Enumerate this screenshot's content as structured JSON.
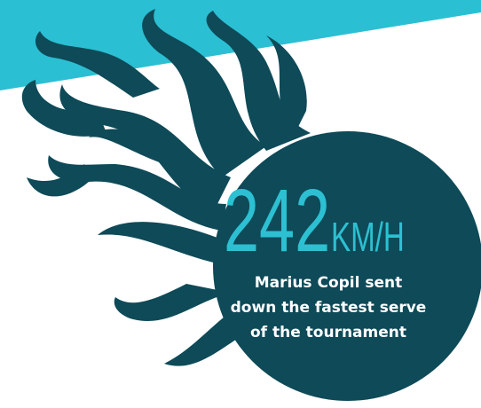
{
  "stat": {
    "value": 242,
    "unit": "KM/H",
    "caption": [
      "Marius Copil sent",
      "down the fastest serve",
      "of the tournament"
    ]
  }
}
